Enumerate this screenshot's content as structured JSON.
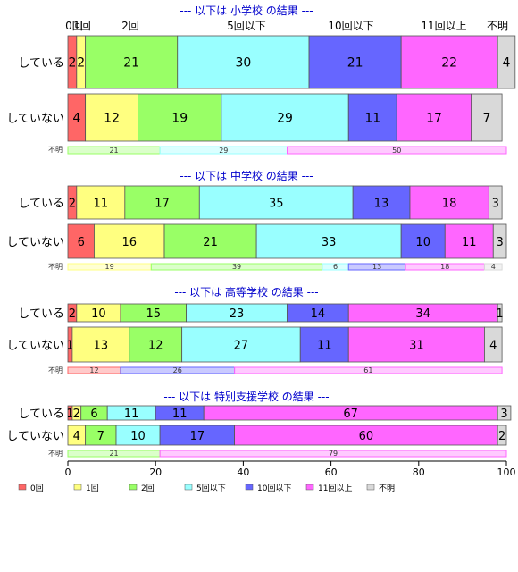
{
  "chart_data": {
    "type": "bar",
    "orientation": "horizontal",
    "stacked": true,
    "xlim": [
      0,
      100
    ],
    "x_ticks": [
      0,
      20,
      40,
      60,
      80,
      100
    ],
    "categories_legend": [
      {
        "label": "0回",
        "color": "#ff6666"
      },
      {
        "label": "1回",
        "color": "#ffff80"
      },
      {
        "label": "2回",
        "color": "#99ff66"
      },
      {
        "label": "5回以下",
        "color": "#99ffff"
      },
      {
        "label": "10回以下",
        "color": "#6666ff"
      },
      {
        "label": "11回以上",
        "color": "#ff66ff"
      },
      {
        "label": "不明",
        "color": "#d9d9d9"
      }
    ],
    "top_category_labels": [
      "0回",
      "1回",
      "2回",
      "5回以下",
      "10回以下",
      "11回以上",
      "不明"
    ],
    "panels": [
      {
        "title": "--- 以下は 小学校 の結果 ---",
        "rows": [
          {
            "label": "している",
            "values": [
              2,
              2,
              21,
              30,
              21,
              22,
              4
            ]
          },
          {
            "label": "していない",
            "values": [
              4,
              12,
              19,
              29,
              11,
              17,
              7
            ]
          }
        ],
        "unknown_label": "不明",
        "unknown_values": [
          0,
          0,
          21,
          29,
          0,
          50,
          0
        ]
      },
      {
        "title": "--- 以下は 中学校 の結果 ---",
        "rows": [
          {
            "label": "している",
            "values": [
              2,
              11,
              17,
              35,
              13,
              18,
              3
            ]
          },
          {
            "label": "していない",
            "values": [
              6,
              16,
              21,
              33,
              10,
              11,
              3
            ]
          }
        ],
        "unknown_label": "不明",
        "unknown_values": [
          0,
          19,
          39,
          6,
          13,
          18,
          4
        ]
      },
      {
        "title": "--- 以下は 高等学校 の結果 ---",
        "rows": [
          {
            "label": "している",
            "values": [
              2,
              10,
              15,
              23,
              14,
              34,
              1
            ]
          },
          {
            "label": "していない",
            "values": [
              1,
              13,
              12,
              27,
              11,
              31,
              4
            ]
          }
        ],
        "unknown_label": "不明",
        "unknown_values": [
          12,
          0,
          0,
          0,
          26,
          61,
          0
        ]
      },
      {
        "title": "--- 以下は 特別支援学校 の結果 ---",
        "rows": [
          {
            "label": "している",
            "values": [
              1,
              2,
              6,
              11,
              11,
              67,
              3
            ]
          },
          {
            "label": "していない",
            "values": [
              0,
              4,
              7,
              10,
              17,
              60,
              2
            ]
          }
        ],
        "unknown_label": "不明",
        "unknown_values": [
          0,
          0,
          21,
          0,
          0,
          79,
          0
        ]
      }
    ]
  }
}
